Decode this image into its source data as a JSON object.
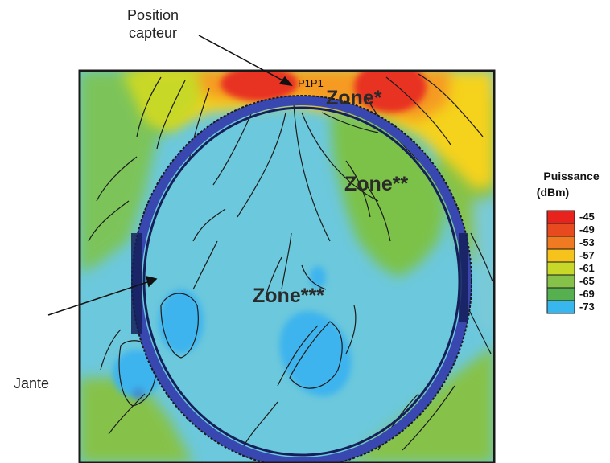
{
  "labels": {
    "sensor_position": "Position capteur",
    "rim": "Jante",
    "sensor_id": "P1P1"
  },
  "zones": {
    "zone1": "Zone*",
    "zone2": "Zone**",
    "zone3": "Zone***"
  },
  "legend": {
    "title": "Puissance",
    "unit": "(dBm)",
    "entries": [
      {
        "value": "-45",
        "color": "#e8231e"
      },
      {
        "value": "-49",
        "color": "#e84a20"
      },
      {
        "value": "-53",
        "color": "#f07a22"
      },
      {
        "value": "-57",
        "color": "#f5c31c"
      },
      {
        "value": "-61",
        "color": "#c8d828"
      },
      {
        "value": "-65",
        "color": "#86c24a"
      },
      {
        "value": "-69",
        "color": "#56b050"
      },
      {
        "value": "-73",
        "color": "#38b6ee"
      }
    ]
  },
  "colors": {
    "background_field": "#6cc8dc",
    "rim": "#2a3fa8",
    "frame": "#1a1a1a"
  }
}
